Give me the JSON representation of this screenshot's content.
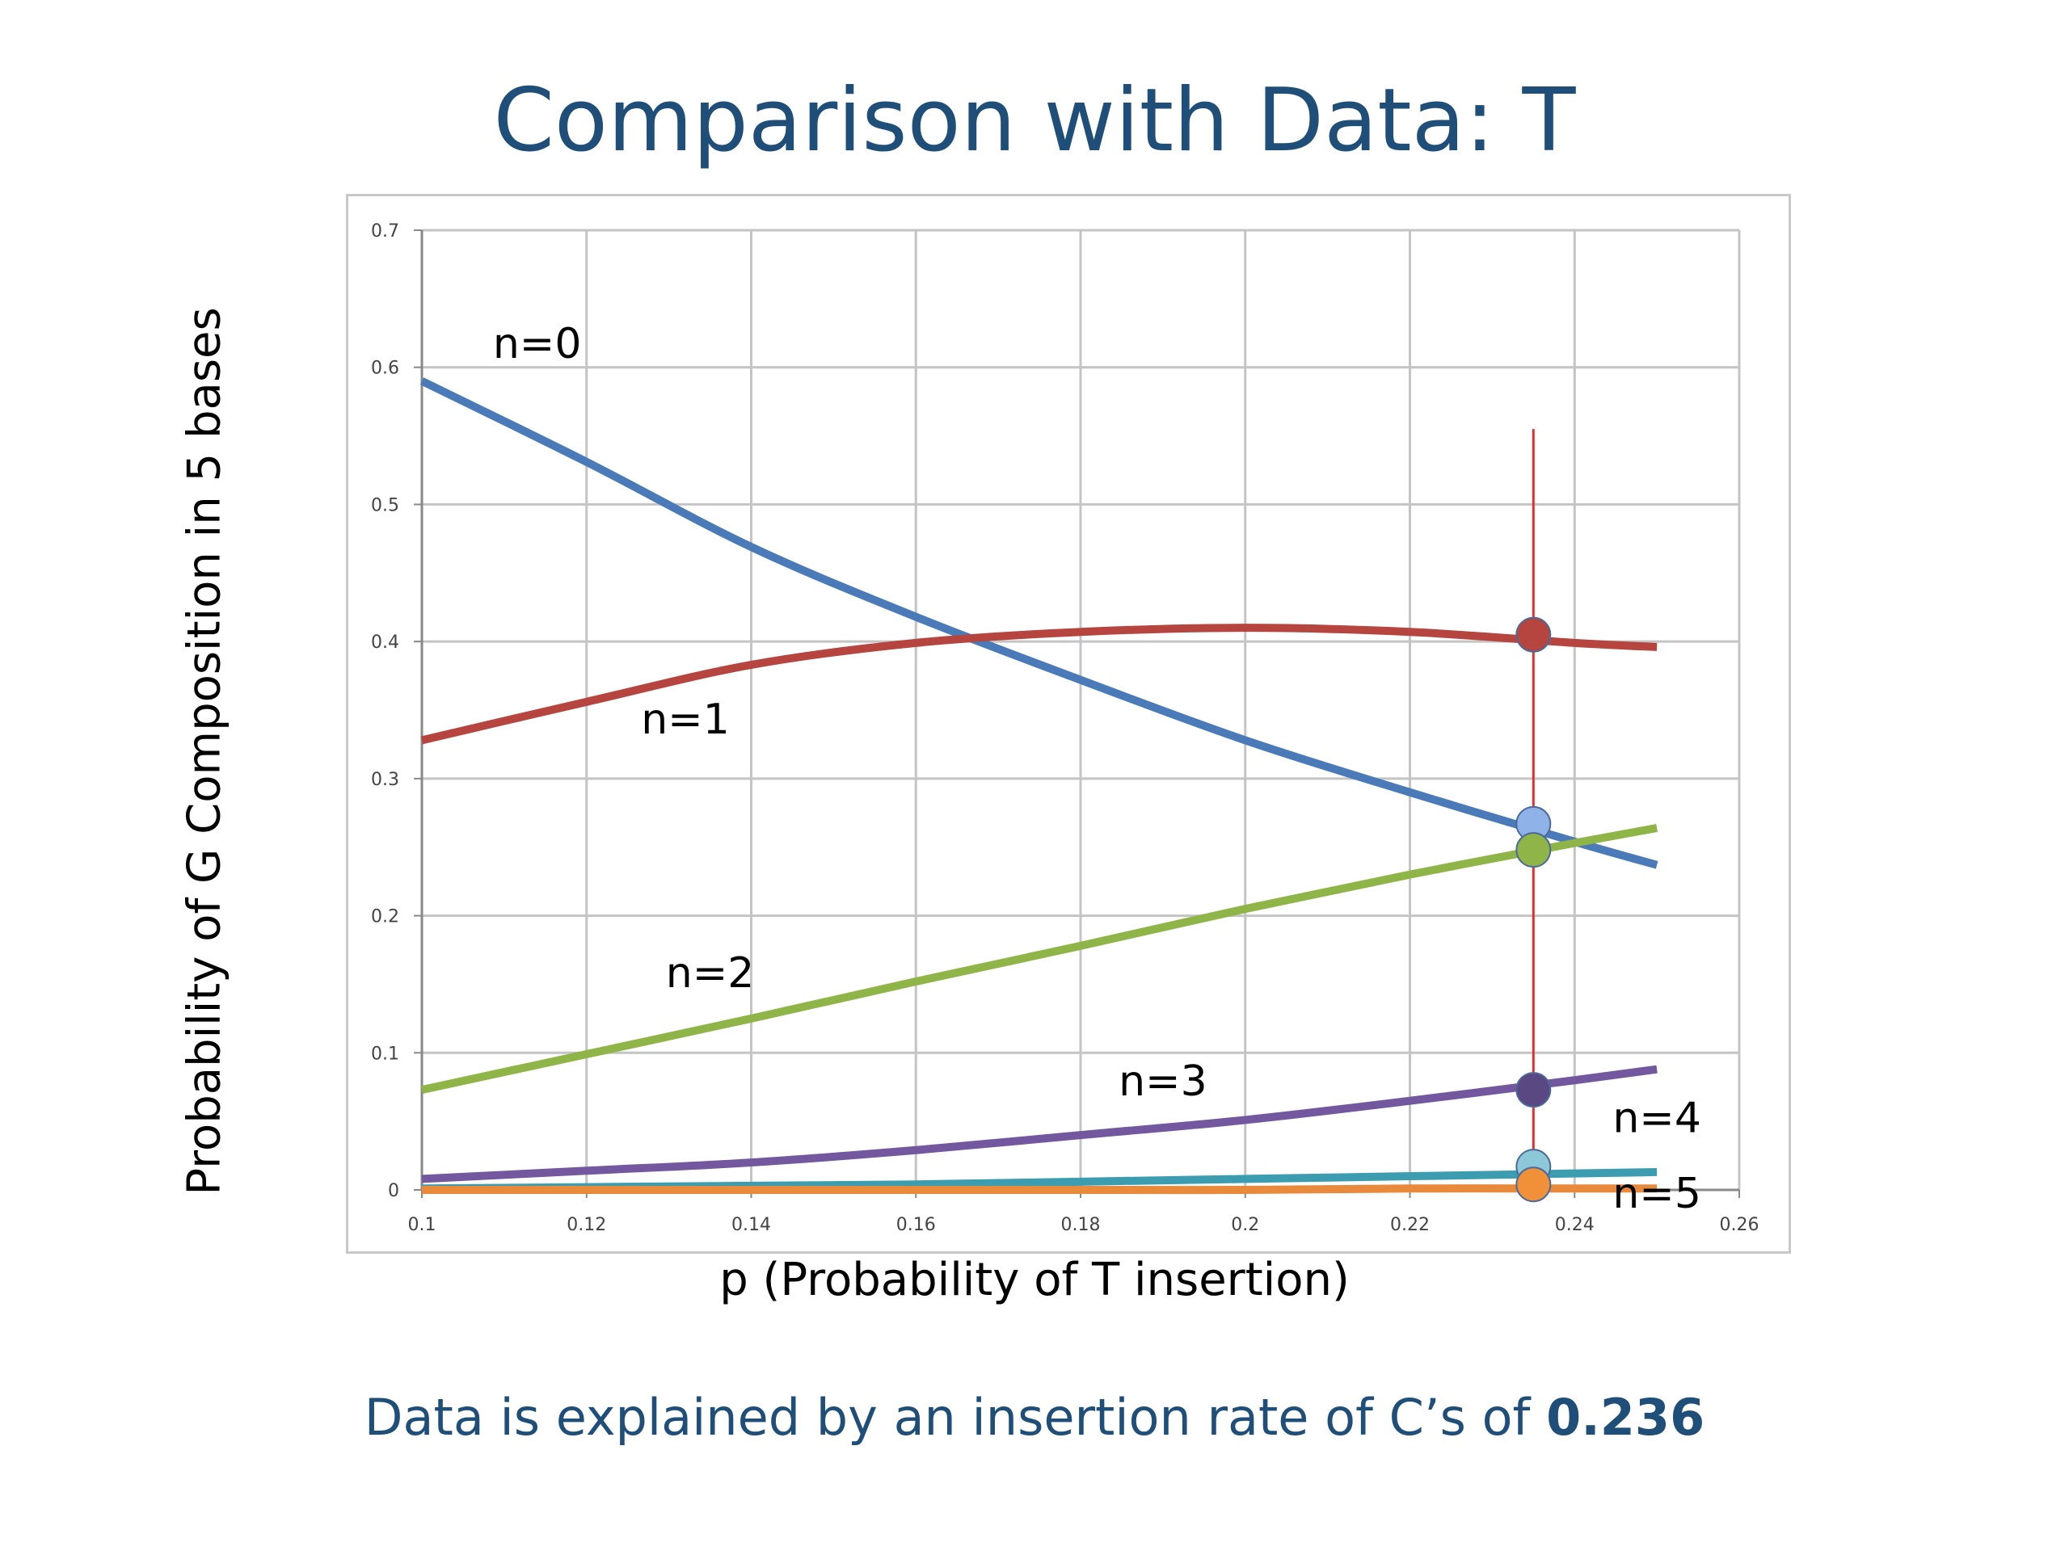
{
  "slide": {
    "title": "Comparison with Data: T",
    "footer_text": "Data is explained by an insertion rate of C’s of ",
    "footer_value": "0.236"
  },
  "chart_data": {
    "type": "line",
    "title": "",
    "xlabel": "p (Probability of T insertion)",
    "ylabel": "Probability of G Composition in 5 bases",
    "xlim": [
      0.1,
      0.26
    ],
    "ylim": [
      0,
      0.7
    ],
    "xticks": [
      "0.1",
      "0.12",
      "0.14",
      "0.16",
      "0.18",
      "0.2",
      "0.22",
      "0.24",
      "0.26"
    ],
    "yticks": [
      "0",
      "0.1",
      "0.2",
      "0.3",
      "0.4",
      "0.5",
      "0.6",
      "0.7"
    ],
    "grid": true,
    "x": [
      0.1,
      0.12,
      0.14,
      0.16,
      0.18,
      0.2,
      0.22,
      0.24,
      0.25
    ],
    "series": [
      {
        "name": "n=0",
        "color": "#4a7ab8",
        "values": [
          0.59,
          0.531,
          0.469,
          0.418,
          0.372,
          0.328,
          0.29,
          0.254,
          0.237
        ]
      },
      {
        "name": "n=1",
        "color": "#b5453e",
        "values": [
          0.328,
          0.356,
          0.383,
          0.399,
          0.407,
          0.41,
          0.407,
          0.399,
          0.396
        ]
      },
      {
        "name": "n=2",
        "color": "#8fb447",
        "values": [
          0.073,
          0.099,
          0.125,
          0.152,
          0.178,
          0.205,
          0.23,
          0.253,
          0.264
        ]
      },
      {
        "name": "n=3",
        "color": "#7358a0",
        "values": [
          0.008,
          0.014,
          0.02,
          0.029,
          0.04,
          0.051,
          0.065,
          0.08,
          0.088
        ]
      },
      {
        "name": "n=4",
        "color": "#3c9db0",
        "values": [
          0.001,
          0.002,
          0.003,
          0.004,
          0.006,
          0.008,
          0.01,
          0.012,
          0.013
        ]
      },
      {
        "name": "n=5",
        "color": "#e8893c",
        "values": [
          0.0,
          0.0,
          0.0,
          0.0,
          0.0,
          0.0,
          0.001,
          0.001,
          0.001
        ]
      }
    ],
    "marker_line": {
      "x": 0.235,
      "y_range": [
        0,
        0.555
      ],
      "color": "#e03030"
    },
    "marker_points": [
      {
        "x": 0.235,
        "y": 0.405,
        "color": "#b5453e"
      },
      {
        "x": 0.235,
        "y": 0.267,
        "color": "#8fb2e8"
      },
      {
        "x": 0.235,
        "y": 0.248,
        "color": "#8fb447"
      },
      {
        "x": 0.235,
        "y": 0.073,
        "color": "#5a4882"
      },
      {
        "x": 0.235,
        "y": 0.017,
        "color": "#8cc8d8"
      },
      {
        "x": 0.235,
        "y": 0.004,
        "color": "#f0913a"
      }
    ],
    "series_labels": [
      {
        "text": "n=0",
        "x": 0.114,
        "y": 0.607
      },
      {
        "text": "n=1",
        "x": 0.132,
        "y": 0.333
      },
      {
        "text": "n=2",
        "x": 0.135,
        "y": 0.148
      },
      {
        "text": "n=3",
        "x": 0.19,
        "y": 0.069
      },
      {
        "text": "n=4",
        "x": 0.25,
        "y": 0.042
      },
      {
        "text": "n=5",
        "x": 0.25,
        "y": -0.013
      }
    ]
  }
}
